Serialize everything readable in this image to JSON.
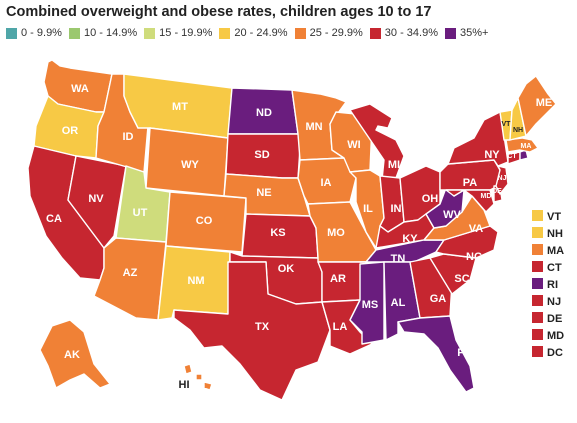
{
  "title": "Combined overweight and obese rates, children ages 10 to 17",
  "legend": [
    {
      "label": "0 - 9.9%",
      "color": "#4fa6a8"
    },
    {
      "label": "10 - 14.9%",
      "color": "#9bc86f"
    },
    {
      "label": "15 - 19.9%",
      "color": "#cfdc7c"
    },
    {
      "label": "20 - 24.9%",
      "color": "#f7c945"
    },
    {
      "label": "25 - 29.9%",
      "color": "#f08136"
    },
    {
      "label": "30 - 34.9%",
      "color": "#c62630"
    },
    {
      "label": "35%+",
      "color": "#6a1d7e"
    }
  ],
  "states": {
    "WA": {
      "bin": 4
    },
    "OR": {
      "bin": 3
    },
    "CA": {
      "bin": 5
    },
    "ID": {
      "bin": 4
    },
    "NV": {
      "bin": 5
    },
    "MT": {
      "bin": 3
    },
    "WY": {
      "bin": 4
    },
    "UT": {
      "bin": 2
    },
    "AZ": {
      "bin": 4
    },
    "CO": {
      "bin": 4
    },
    "NM": {
      "bin": 3
    },
    "ND": {
      "bin": 6
    },
    "SD": {
      "bin": 5
    },
    "NE": {
      "bin": 4
    },
    "KS": {
      "bin": 5
    },
    "OK": {
      "bin": 5
    },
    "TX": {
      "bin": 5
    },
    "MN": {
      "bin": 4
    },
    "IA": {
      "bin": 4
    },
    "MO": {
      "bin": 4
    },
    "AR": {
      "bin": 5
    },
    "LA": {
      "bin": 5
    },
    "WI": {
      "bin": 4
    },
    "IL": {
      "bin": 4
    },
    "MI": {
      "bin": 5
    },
    "IN": {
      "bin": 5
    },
    "OH": {
      "bin": 5
    },
    "KY": {
      "bin": 5
    },
    "TN": {
      "bin": 6
    },
    "MS": {
      "bin": 6
    },
    "AL": {
      "bin": 6
    },
    "GA": {
      "bin": 5
    },
    "FL": {
      "bin": 6
    },
    "SC": {
      "bin": 5
    },
    "NC": {
      "bin": 5
    },
    "VA": {
      "bin": 4
    },
    "WV": {
      "bin": 6
    },
    "PA": {
      "bin": 5
    },
    "NY": {
      "bin": 5
    },
    "ME": {
      "bin": 4
    },
    "VT": {
      "bin": 3
    },
    "NH": {
      "bin": 3
    },
    "MA": {
      "bin": 4
    },
    "CT": {
      "bin": 5
    },
    "RI": {
      "bin": 6
    },
    "NJ": {
      "bin": 5
    },
    "DE": {
      "bin": 5
    },
    "MD": {
      "bin": 5
    },
    "DC": {
      "bin": 5
    },
    "AK": {
      "bin": 4
    },
    "HI": {
      "bin": 4
    }
  },
  "small_states": [
    "VT",
    "NH",
    "MA",
    "CT",
    "RI",
    "NJ",
    "DE",
    "MD",
    "DC"
  ]
}
